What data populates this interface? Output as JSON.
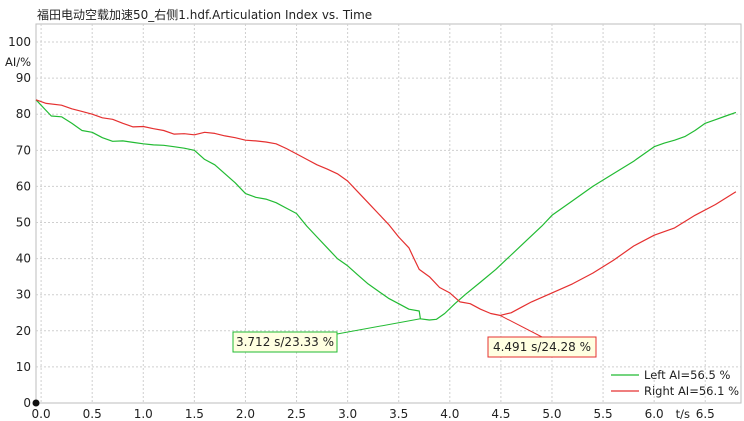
{
  "chart_data": {
    "type": "line",
    "title": "福田电动空载加速50_右侧1.hdf.Articulation Index vs. Time",
    "xlabel": "t/s",
    "ylabel": "AI/%",
    "xlim": [
      -0.05,
      6.85
    ],
    "ylim": [
      0,
      105
    ],
    "xticks": [
      "0.0",
      "0.5",
      "1.0",
      "1.5",
      "2.0",
      "2.5",
      "3.0",
      "3.5",
      "4.0",
      "4.5",
      "5.0",
      "5.5",
      "6.0",
      "6.5"
    ],
    "yticks": [
      "0",
      "10",
      "20",
      "30",
      "40",
      "50",
      "60",
      "70",
      "80",
      "90",
      "100"
    ],
    "grid": true,
    "legend_position": "bottom-right",
    "series": [
      {
        "name": "Left AI=56.5 %",
        "color": "#22bb33",
        "points": [
          [
            -0.05,
            84
          ],
          [
            0.05,
            81
          ],
          [
            0.1,
            79.5
          ],
          [
            0.2,
            79.3
          ],
          [
            0.3,
            77.5
          ],
          [
            0.4,
            75.5
          ],
          [
            0.5,
            75
          ],
          [
            0.6,
            73.5
          ],
          [
            0.7,
            72.5
          ],
          [
            0.8,
            72.6
          ],
          [
            0.9,
            72.2
          ],
          [
            1.0,
            71.8
          ],
          [
            1.1,
            71.5
          ],
          [
            1.2,
            71.4
          ],
          [
            1.3,
            71
          ],
          [
            1.4,
            70.6
          ],
          [
            1.5,
            70
          ],
          [
            1.6,
            67.5
          ],
          [
            1.7,
            66
          ],
          [
            1.8,
            63.5
          ],
          [
            1.9,
            61
          ],
          [
            2.0,
            58
          ],
          [
            2.1,
            57
          ],
          [
            2.2,
            56.5
          ],
          [
            2.3,
            55.5
          ],
          [
            2.4,
            54
          ],
          [
            2.5,
            52.5
          ],
          [
            2.6,
            49
          ],
          [
            2.7,
            46
          ],
          [
            2.8,
            43
          ],
          [
            2.9,
            40
          ],
          [
            3.0,
            38
          ],
          [
            3.1,
            35.5
          ],
          [
            3.2,
            33
          ],
          [
            3.3,
            31
          ],
          [
            3.4,
            29
          ],
          [
            3.5,
            27.5
          ],
          [
            3.6,
            26
          ],
          [
            3.7,
            25.5
          ],
          [
            3.712,
            23.33
          ],
          [
            3.8,
            23
          ],
          [
            3.87,
            23.2
          ],
          [
            3.95,
            24.8
          ],
          [
            4.05,
            27.5
          ],
          [
            4.15,
            30
          ],
          [
            4.3,
            33.5
          ],
          [
            4.45,
            37
          ],
          [
            4.6,
            41
          ],
          [
            4.75,
            45
          ],
          [
            4.9,
            49
          ],
          [
            5.0,
            52
          ],
          [
            5.2,
            56
          ],
          [
            5.4,
            60
          ],
          [
            5.6,
            63.5
          ],
          [
            5.8,
            67
          ],
          [
            6.0,
            71
          ],
          [
            6.1,
            72
          ],
          [
            6.2,
            72.8
          ],
          [
            6.3,
            73.8
          ],
          [
            6.4,
            75.5
          ],
          [
            6.5,
            77.5
          ],
          [
            6.6,
            78.5
          ],
          [
            6.7,
            79.5
          ],
          [
            6.8,
            80.5
          ]
        ]
      },
      {
        "name": "Right AI=56.1 %",
        "color": "#e53030",
        "points": [
          [
            -0.05,
            84
          ],
          [
            0.05,
            83
          ],
          [
            0.2,
            82.5
          ],
          [
            0.3,
            81.5
          ],
          [
            0.4,
            80.8
          ],
          [
            0.5,
            80
          ],
          [
            0.6,
            79
          ],
          [
            0.7,
            78.6
          ],
          [
            0.8,
            77.5
          ],
          [
            0.9,
            76.5
          ],
          [
            1.0,
            76.6
          ],
          [
            1.1,
            76
          ],
          [
            1.2,
            75.5
          ],
          [
            1.3,
            74.5
          ],
          [
            1.4,
            74.6
          ],
          [
            1.5,
            74.3
          ],
          [
            1.6,
            75
          ],
          [
            1.7,
            74.7
          ],
          [
            1.8,
            74
          ],
          [
            1.9,
            73.5
          ],
          [
            2.0,
            72.8
          ],
          [
            2.1,
            72.6
          ],
          [
            2.2,
            72.3
          ],
          [
            2.3,
            71.8
          ],
          [
            2.4,
            70.5
          ],
          [
            2.5,
            69
          ],
          [
            2.6,
            67.5
          ],
          [
            2.7,
            66
          ],
          [
            2.8,
            64.8
          ],
          [
            2.9,
            63.5
          ],
          [
            3.0,
            61.5
          ],
          [
            3.1,
            58.5
          ],
          [
            3.2,
            55.5
          ],
          [
            3.3,
            52.5
          ],
          [
            3.4,
            49.5
          ],
          [
            3.5,
            46
          ],
          [
            3.6,
            43
          ],
          [
            3.65,
            40
          ],
          [
            3.7,
            37
          ],
          [
            3.8,
            35
          ],
          [
            3.9,
            32
          ],
          [
            4.0,
            30.5
          ],
          [
            4.1,
            28
          ],
          [
            4.2,
            27.5
          ],
          [
            4.3,
            26
          ],
          [
            4.4,
            24.8
          ],
          [
            4.491,
            24.28
          ],
          [
            4.6,
            25
          ],
          [
            4.7,
            26.5
          ],
          [
            4.8,
            28
          ],
          [
            5.0,
            30.5
          ],
          [
            5.2,
            33
          ],
          [
            5.4,
            36
          ],
          [
            5.6,
            39.5
          ],
          [
            5.8,
            43.5
          ],
          [
            6.0,
            46.5
          ],
          [
            6.2,
            48.5
          ],
          [
            6.4,
            52
          ],
          [
            6.6,
            55
          ],
          [
            6.8,
            58.5
          ]
        ]
      }
    ],
    "annotations": [
      {
        "text": "3.712 s/23.33 %",
        "x": 3.712,
        "y": 23.33,
        "series": 0
      },
      {
        "text": "4.491 s/24.28 %",
        "x": 4.491,
        "y": 24.28,
        "series": 1
      }
    ]
  }
}
